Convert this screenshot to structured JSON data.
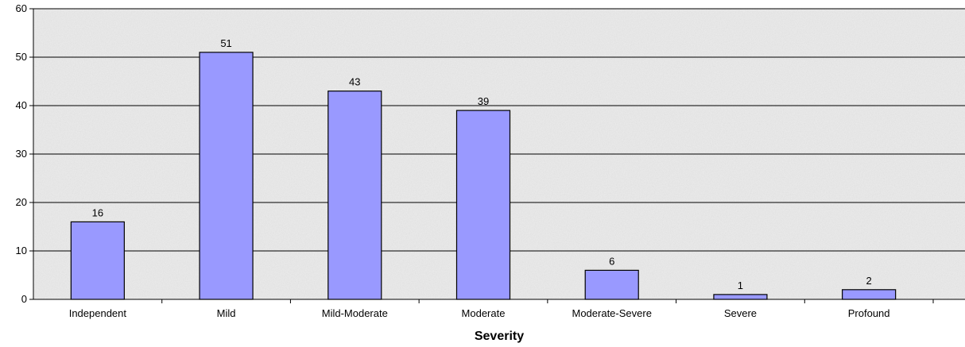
{
  "chart_data": {
    "type": "bar",
    "title": "",
    "xlabel": "Severity",
    "ylabel": "",
    "categories": [
      "Independent",
      "Mild",
      "Mild-Moderate",
      "Moderate",
      "Moderate-Severe",
      "Severe",
      "Profound"
    ],
    "values": [
      16,
      51,
      43,
      39,
      6,
      1,
      2
    ],
    "ylim": [
      0,
      60
    ],
    "yticks": [
      0,
      10,
      20,
      30,
      40,
      50,
      60
    ],
    "grid": true,
    "legend": "none",
    "colors": {
      "bar_fill": "#9999ff",
      "bar_stroke": "#000000",
      "plot_background": "#e9e9e9",
      "gridline": "#000000"
    }
  }
}
